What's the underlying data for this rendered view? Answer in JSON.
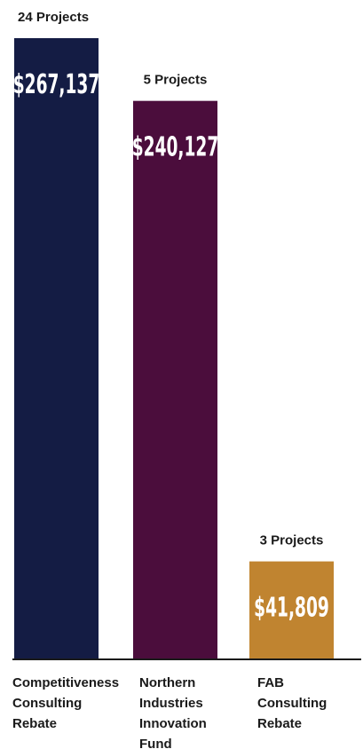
{
  "chart_data": {
    "type": "bar",
    "title": "",
    "xlabel": "",
    "ylabel": "",
    "categories": [
      [
        "Competitiveness",
        "Consulting",
        "Rebate"
      ],
      [
        "Northern",
        "Industries",
        "Innovation",
        "Fund"
      ],
      [
        "FAB",
        "Consulting",
        "Rebate"
      ]
    ],
    "values": [
      267137,
      240127,
      41809
    ],
    "value_labels": [
      "$267,137",
      "$240,127",
      "$41,809"
    ],
    "project_labels": [
      "24 Projects",
      "5 Projects",
      "3 Projects"
    ],
    "colors": [
      "#141c44",
      "#4b0d3c",
      "#c08430"
    ],
    "ylim": [
      0,
      267137
    ],
    "grid": false,
    "legend": "none"
  }
}
